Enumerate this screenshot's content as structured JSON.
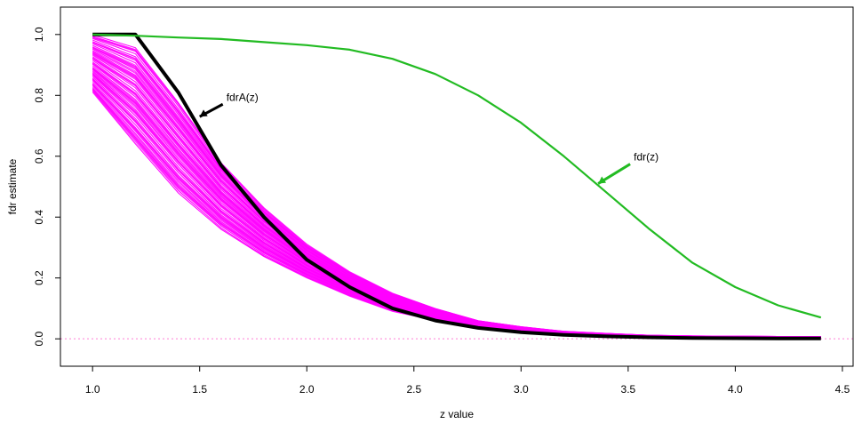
{
  "chart_data": {
    "type": "line",
    "title": "",
    "xlabel": "z value",
    "ylabel": "fdr estimate",
    "xlim": [
      0.85,
      4.55
    ],
    "ylim": [
      -0.09,
      1.09
    ],
    "xticks": [
      1.0,
      1.5,
      2.0,
      2.5,
      3.0,
      3.5,
      4.0,
      4.5
    ],
    "xtick_labels": [
      "1.0",
      "1.5",
      "2.0",
      "2.5",
      "3.0",
      "3.5",
      "4.0",
      "4.5"
    ],
    "yticks": [
      0.0,
      0.2,
      0.4,
      0.6,
      0.8,
      1.0
    ],
    "ytick_labels": [
      "0.0",
      "0.2",
      "0.4",
      "0.6",
      "0.8",
      "1.0"
    ],
    "grid": false,
    "reference_line": {
      "y": 0.0,
      "style": "dotted",
      "color": "#ff7fd5"
    },
    "series": [
      {
        "name": "fdrA(z)",
        "color": "#000000",
        "x": [
          1.0,
          1.2,
          1.4,
          1.6,
          1.8,
          2.0,
          2.2,
          2.4,
          2.6,
          2.8,
          3.0,
          3.2,
          3.4,
          3.6,
          3.8,
          4.0,
          4.2,
          4.4
        ],
        "y": [
          1.0,
          1.0,
          0.81,
          0.57,
          0.4,
          0.26,
          0.17,
          0.1,
          0.06,
          0.036,
          0.022,
          0.013,
          0.008,
          0.005,
          0.003,
          0.002,
          0.001,
          0.001
        ]
      },
      {
        "name": "fdr(z)",
        "color": "#22bb22",
        "x": [
          1.0,
          1.2,
          1.4,
          1.6,
          1.8,
          2.0,
          2.2,
          2.4,
          2.6,
          2.8,
          3.0,
          3.2,
          3.4,
          3.6,
          3.8,
          4.0,
          4.2,
          4.4
        ],
        "y": [
          1.0,
          0.996,
          0.99,
          0.985,
          0.975,
          0.965,
          0.95,
          0.92,
          0.87,
          0.8,
          0.71,
          0.6,
          0.48,
          0.36,
          0.25,
          0.17,
          0.11,
          0.07
        ]
      }
    ],
    "simulated_band": {
      "color": "#ff00ff",
      "count": 100,
      "x": [
        1.0,
        1.2,
        1.4,
        1.6,
        1.8,
        2.0,
        2.2,
        2.4,
        2.6,
        2.8,
        3.0,
        3.2,
        3.4,
        3.6,
        3.8,
        4.0,
        4.2,
        4.4
      ],
      "upper": [
        1.0,
        0.96,
        0.78,
        0.58,
        0.43,
        0.31,
        0.22,
        0.15,
        0.1,
        0.06,
        0.04,
        0.025,
        0.018,
        0.012,
        0.01,
        0.009,
        0.008,
        0.008
      ],
      "lower": [
        0.81,
        0.64,
        0.48,
        0.36,
        0.27,
        0.2,
        0.14,
        0.09,
        0.06,
        0.035,
        0.02,
        0.012,
        0.008,
        0.005,
        0.004,
        0.003,
        0.003,
        0.003
      ]
    },
    "annotations": [
      {
        "text": "fdrA(z)",
        "color": "#000000",
        "points_to": [
          1.5,
          0.73
        ]
      },
      {
        "text": "fdr(z)",
        "color": "#22bb22",
        "points_to": [
          3.36,
          0.51
        ]
      }
    ]
  }
}
